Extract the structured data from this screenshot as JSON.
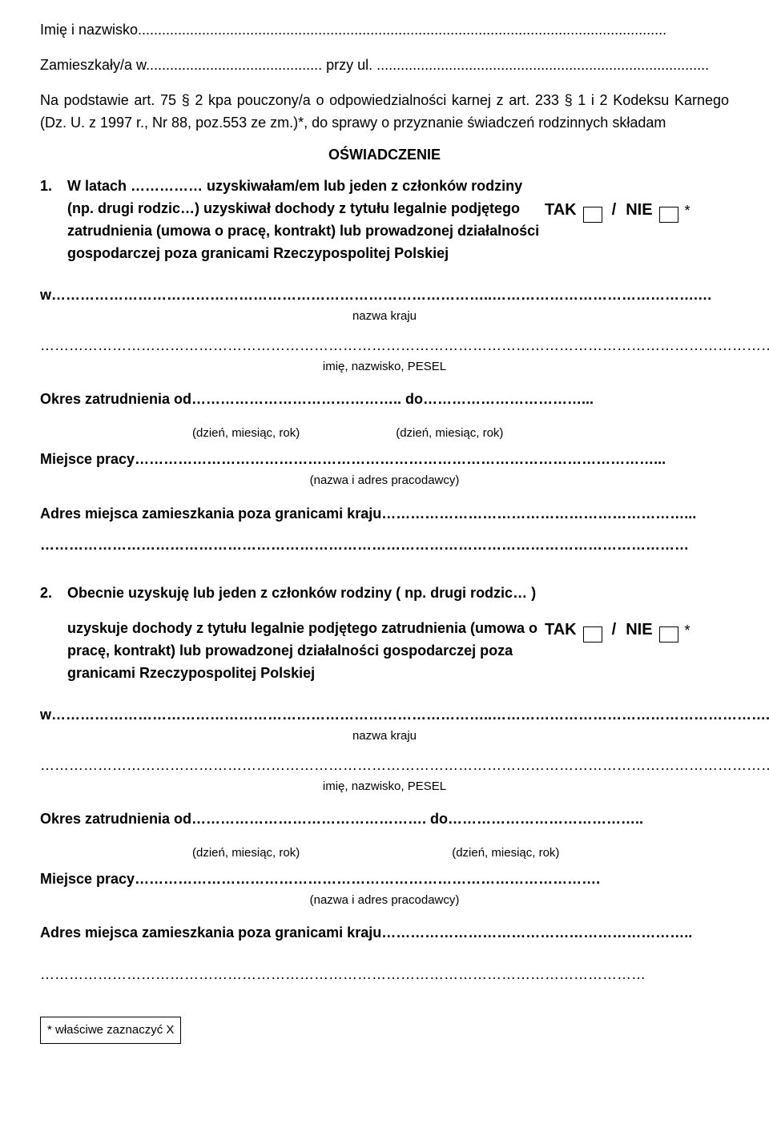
{
  "header": {
    "name_line": "Imię i nazwisko....................................................................................................................................",
    "residence_line": "Zamieszkały/a w............................................ przy ul. ...................................................................................",
    "legal_basis": "Na podstawie art. 75 § 2 kpa pouczony/a o odpowiedzialności karnej z art. 233 § 1 i 2 Kodeksu Karnego (Dz. U. z 1997 r., Nr 88, poz.553 ze zm.)*, do sprawy o przyznanie świadczeń rodzinnych  składam",
    "title": "OŚWIADCZENIE"
  },
  "section1": {
    "num": "1.",
    "line1": "W latach …………… uzyskiwałam/em lub jeden z członków rodziny",
    "line2": "(np. drugi rodzic…) uzyskiwał dochody z tytułu legalnie podjętego zatrudnienia (umowa o pracę, kontrakt) lub prowadzonej działalności gospodarczej poza granicami Rzeczypospolitej Polskiej",
    "tak": "TAK",
    "nie": "NIE",
    "star": "*",
    "country_line": "w………………………………………………………………………………..…………………………………….…",
    "country_label": "nazwa kraju",
    "pesel_line": "………………………………………………………………………………………………………………………………………………",
    "pesel_label": "imię, nazwisko, PESEL",
    "period_line": "Okres zatrudnienia od…………………………………….. do……………………………...",
    "date_hint": "(dzień, miesiąc, rok)",
    "work_line": "Miejsce pracy………………………………………………………………………………………………...",
    "employer_label": "(nazwa i adres pracodawcy)",
    "address_line": "Adres miejsca zamieszkania poza granicami kraju………………………………………………………...",
    "address_cont": "………………………………………………………………………………………………………………………"
  },
  "section2": {
    "num": "2.",
    "line1": "Obecnie uzyskuję lub jeden z członków rodziny  ( np. drugi rodzic… )",
    "line2": "uzyskuje dochody z tytułu legalnie podjętego zatrudnienia  (umowa o pracę, kontrakt) lub prowadzonej działalności gospodarczej poza granicami Rzeczypospolitej Polskiej",
    "tak": "TAK",
    "nie": "NIE",
    "star": "*",
    "country_line": "w………………………………………………………………………………..…………………………………………………...",
    "country_label": "nazwa kraju",
    "pesel_line": "…………………………………………………………………………………………………………………………………………….",
    "pesel_label": "imię, nazwisko, PESEL",
    "period_line": "Okres zatrudnienia od…………………………………………. do…………………………………..",
    "date_hint": "(dzień, miesiąc, rok)",
    "work_line": "Miejsce pracy…………………………………………………………………………………….",
    "employer_label": "(nazwa i adres pracodawcy)",
    "address_line": "Adres miejsca zamieszkania poza granicami kraju………………………………………………………..",
    "address_cont": "………………………………………………………………………………………………………………"
  },
  "footnote": "* właściwe zaznaczyć X"
}
